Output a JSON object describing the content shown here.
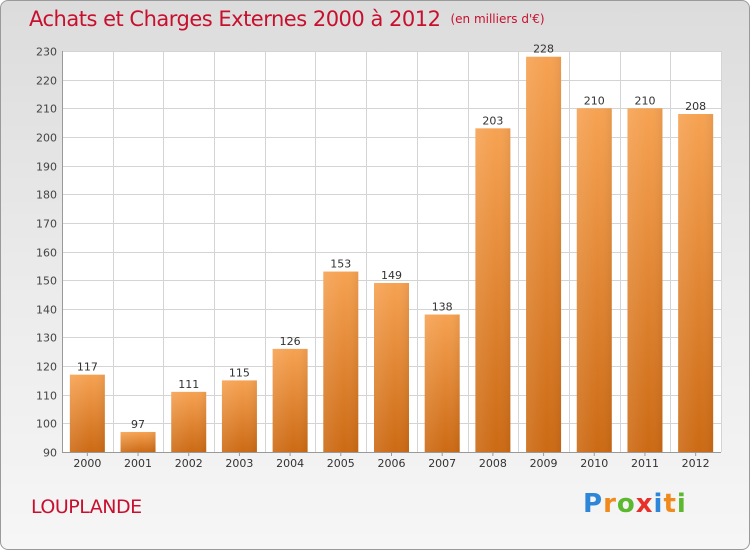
{
  "title": "Achats et Charges Externes 2000 à 2012",
  "unit": "(en milliers d'€)",
  "place": "LOUPLANDE",
  "logo": {
    "letters": [
      "P",
      "r",
      "o",
      "x",
      "i",
      "t",
      "i"
    ],
    "colors": [
      "#2e86d8",
      "#f08a1c",
      "#5cb82e",
      "#e8302a",
      "#2e86d8",
      "#f08a1c",
      "#5cb82e"
    ]
  },
  "colors": {
    "bar": "#f08c2c",
    "accent": "#c8102e"
  },
  "chart_data": {
    "type": "bar",
    "title": "Achats et Charges Externes 2000 à 2012",
    "categories": [
      "2000",
      "2001",
      "2002",
      "2003",
      "2004",
      "2005",
      "2006",
      "2007",
      "2008",
      "2009",
      "2010",
      "2011",
      "2012"
    ],
    "values": [
      117,
      97,
      111,
      115,
      126,
      153,
      149,
      138,
      203,
      228,
      210,
      210,
      208
    ],
    "ylim": [
      90,
      230
    ],
    "yticks": [
      90,
      100,
      110,
      120,
      130,
      140,
      150,
      160,
      170,
      180,
      190,
      200,
      210,
      220,
      230
    ],
    "grid": true,
    "xlabel": "",
    "ylabel": ""
  }
}
